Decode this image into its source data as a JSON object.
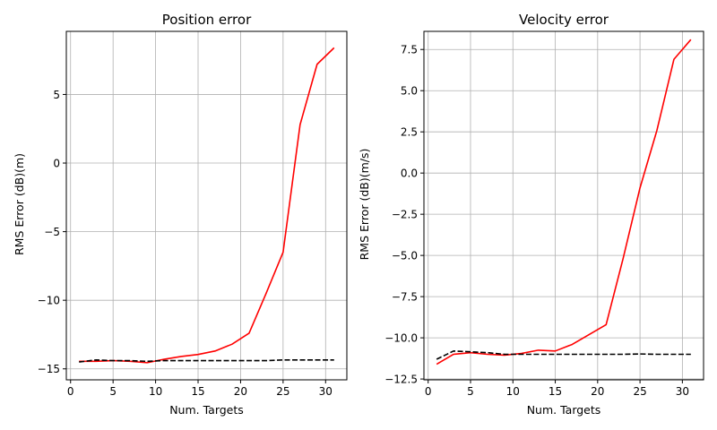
{
  "chart_data": [
    {
      "type": "line",
      "title": "Position error",
      "xlabel": "Num. Targets",
      "ylabel": "RMS Error (dB)(m)",
      "xlim": [
        -0.5,
        32.5
      ],
      "ylim": [
        -15.8,
        9.6
      ],
      "xticks": [
        0,
        5,
        10,
        15,
        20,
        25,
        30
      ],
      "xtick_labels": [
        "0",
        "5",
        "10",
        "15",
        "20",
        "25",
        "30"
      ],
      "yticks": [
        -15,
        -10,
        -5,
        0,
        5
      ],
      "ytick_labels": [
        "−15",
        "−10",
        "−5",
        "0",
        "5"
      ],
      "grid": true,
      "x": [
        1,
        3,
        5,
        7,
        9,
        11,
        13,
        15,
        17,
        19,
        21,
        23,
        25,
        27,
        29,
        31
      ],
      "series": [
        {
          "color": "#ff0000",
          "style": "solid",
          "values": [
            -14.45,
            -14.45,
            -14.4,
            -14.45,
            -14.55,
            -14.3,
            -14.1,
            -13.95,
            -13.7,
            -13.2,
            -12.4,
            -9.5,
            -6.5,
            2.8,
            7.2,
            8.4
          ]
        },
        {
          "color": "#000000",
          "style": "dashed",
          "values": [
            -14.5,
            -14.35,
            -14.4,
            -14.4,
            -14.45,
            -14.4,
            -14.4,
            -14.4,
            -14.4,
            -14.4,
            -14.4,
            -14.4,
            -14.35,
            -14.35,
            -14.35,
            -14.35
          ]
        }
      ]
    },
    {
      "type": "line",
      "title": "Velocity error",
      "xlabel": "Num. Targets",
      "ylabel": "RMS Error (dB)(m/s)",
      "xlim": [
        -0.5,
        32.5
      ],
      "ylim": [
        -12.55,
        8.6
      ],
      "xticks": [
        0,
        5,
        10,
        15,
        20,
        25,
        30
      ],
      "xtick_labels": [
        "0",
        "5",
        "10",
        "15",
        "20",
        "25",
        "30"
      ],
      "yticks": [
        -12.5,
        -10,
        -7.5,
        -5,
        -2.5,
        0,
        2.5,
        5,
        7.5
      ],
      "ytick_labels": [
        "−12.5",
        "−10.0",
        "−7.5",
        "−5.0",
        "−2.5",
        "0.0",
        "2.5",
        "5.0",
        "7.5"
      ],
      "grid": true,
      "x": [
        1,
        3,
        5,
        7,
        9,
        11,
        13,
        15,
        17,
        19,
        21,
        23,
        25,
        27,
        29,
        31
      ],
      "series": [
        {
          "color": "#ff0000",
          "style": "solid",
          "values": [
            -11.6,
            -11.0,
            -10.9,
            -11.0,
            -11.05,
            -10.95,
            -10.75,
            -10.8,
            -10.4,
            -9.8,
            -9.2,
            -5.2,
            -0.9,
            2.6,
            6.9,
            8.1
          ]
        },
        {
          "color": "#000000",
          "style": "dashed",
          "values": [
            -11.3,
            -10.8,
            -10.85,
            -10.9,
            -11.0,
            -11.0,
            -11.0,
            -11.0,
            -11.0,
            -11.0,
            -11.0,
            -11.0,
            -10.98,
            -11.0,
            -11.0,
            -11.0
          ]
        }
      ]
    }
  ]
}
